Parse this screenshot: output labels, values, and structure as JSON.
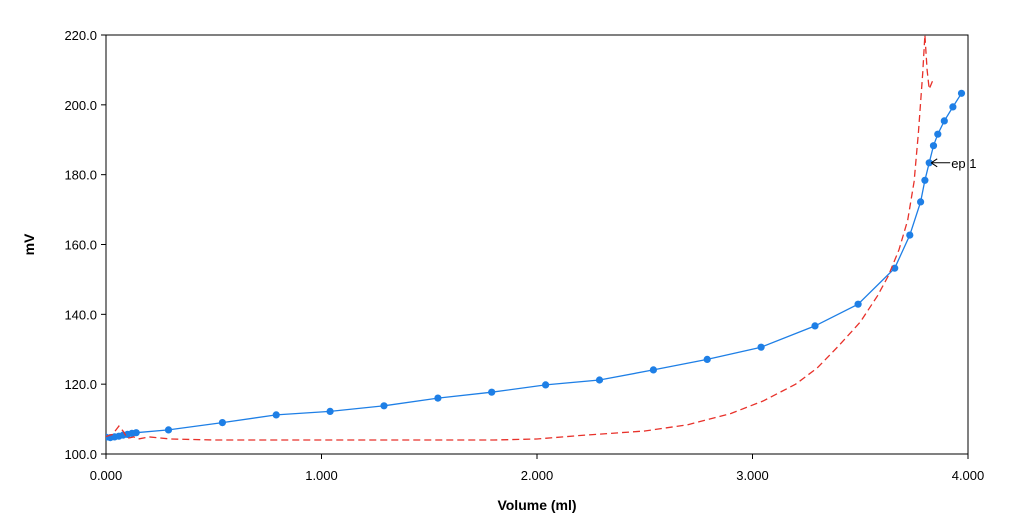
{
  "chart_data": {
    "type": "line",
    "xlabel": "Volume (ml)",
    "ylabel": "mV",
    "xlim": [
      0,
      4
    ],
    "ylim": [
      100,
      220
    ],
    "x_ticks": [
      "0.000",
      "1.000",
      "2.000",
      "3.000",
      "4.000"
    ],
    "y_ticks": [
      "100.0",
      "120.0",
      "140.0",
      "160.0",
      "180.0",
      "200.0",
      "220.0"
    ],
    "grid": false,
    "series": [
      {
        "style": "solid-with-markers",
        "color": "#1e7fe6",
        "points": [
          [
            0.0,
            104.8
          ],
          [
            0.02,
            104.7
          ],
          [
            0.04,
            104.9
          ],
          [
            0.06,
            105.1
          ],
          [
            0.08,
            105.4
          ],
          [
            0.1,
            105.6
          ],
          [
            0.12,
            105.9
          ],
          [
            0.14,
            106.1
          ],
          [
            0.29,
            106.9
          ],
          [
            0.54,
            109.0
          ],
          [
            0.79,
            111.2
          ],
          [
            1.04,
            112.2
          ],
          [
            1.29,
            113.8
          ],
          [
            1.54,
            116.0
          ],
          [
            1.79,
            117.7
          ],
          [
            2.04,
            119.8
          ],
          [
            2.29,
            121.2
          ],
          [
            2.54,
            124.1
          ],
          [
            2.79,
            127.1
          ],
          [
            3.04,
            130.6
          ],
          [
            3.29,
            136.7
          ],
          [
            3.49,
            142.9
          ],
          [
            3.66,
            153.2
          ],
          [
            3.73,
            162.7
          ],
          [
            3.78,
            172.2
          ],
          [
            3.8,
            178.4
          ],
          [
            3.82,
            183.4
          ],
          [
            3.84,
            188.3
          ],
          [
            3.86,
            191.6
          ],
          [
            3.89,
            195.4
          ],
          [
            3.93,
            199.4
          ],
          [
            3.97,
            203.3
          ]
        ]
      },
      {
        "style": "dashed",
        "color": "#e8312a",
        "points": [
          [
            0.0,
            105.0
          ],
          [
            0.03,
            105.6
          ],
          [
            0.06,
            108.0
          ],
          [
            0.08,
            106.5
          ],
          [
            0.1,
            104.5
          ],
          [
            0.13,
            104.9
          ],
          [
            0.15,
            104.3
          ],
          [
            0.2,
            104.9
          ],
          [
            0.3,
            104.3
          ],
          [
            0.5,
            104.0
          ],
          [
            0.8,
            104.0
          ],
          [
            1.2,
            104.0
          ],
          [
            1.8,
            104.0
          ],
          [
            2.0,
            104.3
          ],
          [
            2.2,
            105.3
          ],
          [
            2.5,
            106.6
          ],
          [
            2.7,
            108.4
          ],
          [
            2.9,
            111.6
          ],
          [
            3.05,
            115.2
          ],
          [
            3.2,
            120.0
          ],
          [
            3.3,
            124.6
          ],
          [
            3.4,
            131.0
          ],
          [
            3.5,
            137.8
          ],
          [
            3.58,
            145.3
          ],
          [
            3.63,
            151.0
          ],
          [
            3.68,
            158.5
          ],
          [
            3.72,
            167.0
          ],
          [
            3.75,
            178.0
          ],
          [
            3.77,
            192.0
          ],
          [
            3.79,
            209.0
          ],
          [
            3.8,
            220.0
          ],
          [
            3.81,
            210.0
          ],
          [
            3.82,
            204.5
          ],
          [
            3.84,
            207.5
          ]
        ]
      }
    ],
    "annotations": [
      {
        "text": "ep 1",
        "x": 3.82,
        "y": 183.4
      }
    ]
  }
}
